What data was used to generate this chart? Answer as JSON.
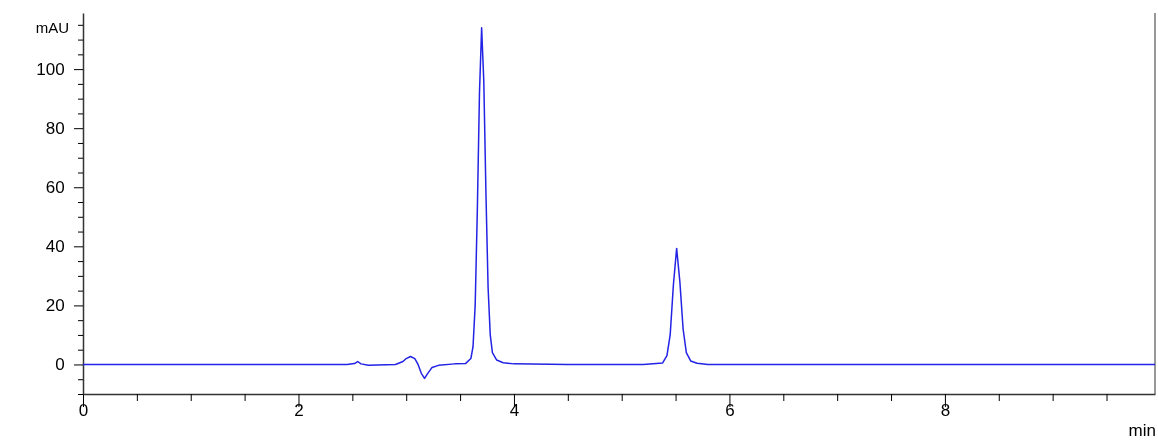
{
  "chart_data": {
    "type": "line",
    "xlabel": "min",
    "ylabel": "mAU",
    "xlim": [
      0,
      9.95
    ],
    "ylim": [
      -10,
      119
    ],
    "xticks": [
      0,
      {
        "value": 0.5,
        "label": null
      },
      {
        "value": 1,
        "label": null
      },
      {
        "value": 1.5,
        "label": null
      },
      2,
      {
        "value": 2.5,
        "label": null
      },
      {
        "value": 3,
        "label": null
      },
      {
        "value": 3.5,
        "label": null
      },
      4,
      {
        "value": 4.5,
        "label": null
      },
      {
        "value": 5,
        "label": null
      },
      {
        "value": 5.5,
        "label": null
      },
      6,
      {
        "value": 6.5,
        "label": null
      },
      {
        "value": 7,
        "label": null
      },
      {
        "value": 7.5,
        "label": null
      },
      8,
      {
        "value": 8.5,
        "label": null
      },
      {
        "value": 9,
        "label": null
      },
      {
        "value": 9.5,
        "label": null
      }
    ],
    "yticks": [
      {
        "value": -10,
        "label": null
      },
      {
        "value": -5,
        "label": null
      },
      0,
      {
        "value": 5,
        "label": null
      },
      {
        "value": 10,
        "label": null
      },
      {
        "value": 15,
        "label": null
      },
      20,
      {
        "value": 25,
        "label": null
      },
      {
        "value": 30,
        "label": null
      },
      {
        "value": 35,
        "label": null
      },
      40,
      {
        "value": 45,
        "label": null
      },
      {
        "value": 50,
        "label": null
      },
      {
        "value": 55,
        "label": null
      },
      60,
      {
        "value": 65,
        "label": null
      },
      {
        "value": 70,
        "label": null
      },
      {
        "value": 75,
        "label": null
      },
      80,
      {
        "value": 85,
        "label": null
      },
      {
        "value": 90,
        "label": null
      },
      {
        "value": 95,
        "label": null
      },
      100,
      {
        "value": 105,
        "label": null
      },
      {
        "value": 110,
        "label": null
      },
      {
        "value": 115,
        "label": null
      }
    ],
    "grid": false,
    "marker": "none",
    "line_style": "solid",
    "series": [
      {
        "color": "#2323e6",
        "x": [
          0,
          1,
          2,
          2.45,
          2.52,
          2.55,
          2.58,
          2.65,
          2.9,
          2.97,
          3.0,
          3.04,
          3.08,
          3.11,
          3.14,
          3.17,
          3.2,
          3.24,
          3.3,
          3.45,
          3.55,
          3.6,
          3.62,
          3.64,
          3.66,
          3.68,
          3.7,
          3.72,
          3.74,
          3.76,
          3.78,
          3.8,
          3.84,
          3.9,
          4.0,
          4.5,
          5.0,
          5.2,
          5.38,
          5.42,
          5.45,
          5.48,
          5.51,
          5.54,
          5.57,
          5.6,
          5.64,
          5.7,
          5.8,
          6.5,
          7,
          8,
          9,
          9.95
        ],
        "values": [
          0,
          0,
          0,
          0,
          0.3,
          1,
          0.2,
          -0.3,
          0,
          1,
          2,
          2.7,
          2,
          0,
          -3,
          -4.7,
          -3,
          -1,
          -0.3,
          0.2,
          0.3,
          2,
          6,
          20,
          52,
          92,
          114,
          96,
          58,
          26,
          10,
          4,
          1.5,
          0.6,
          0.2,
          0,
          0,
          0,
          0.5,
          3,
          10,
          27,
          39.3,
          28,
          12,
          4,
          1.2,
          0.4,
          0,
          0,
          0,
          0,
          0,
          0
        ]
      }
    ]
  }
}
